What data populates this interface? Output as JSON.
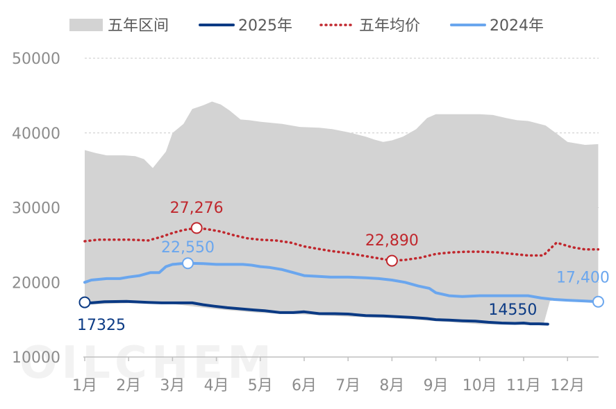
{
  "chart_data": {
    "type": "line",
    "categories": [
      "1月",
      "2月",
      "3月",
      "4月",
      "5月",
      "6月",
      "7月",
      "8月",
      "9月",
      "10月",
      "11月",
      "12月"
    ],
    "ylim": [
      10000,
      50000
    ],
    "yticks": [
      "10000",
      "20000",
      "30000",
      "40000",
      "50000"
    ],
    "grid": true,
    "legend_position": "top",
    "legend": [
      {
        "key": "range",
        "label": "五年区间"
      },
      {
        "key": "y2025",
        "label": "2025年"
      },
      {
        "key": "avg",
        "label": "五年均价"
      },
      {
        "key": "y2024",
        "label": "2024年"
      }
    ],
    "colors": {
      "range": "#d3d3d3",
      "y2025": "#0b3a84",
      "avg": "#c0272d",
      "y2024": "#6aa6ee",
      "axis_text": "#8c8c8c",
      "grid": "#c8c8c8"
    },
    "series": {
      "range_high": {
        "x": [
          1.0,
          1.25,
          1.5,
          1.9,
          2.15,
          2.35,
          2.55,
          2.85,
          3.0,
          3.25,
          3.45,
          3.7,
          3.9,
          4.1,
          4.3,
          4.55,
          4.75,
          5.0,
          5.5,
          5.9,
          6.35,
          6.65,
          7.0,
          7.4,
          7.6,
          7.8,
          8.0,
          8.25,
          8.55,
          8.8,
          9.0,
          9.5,
          10.0,
          10.3,
          10.6,
          10.85,
          11.1,
          11.5,
          11.8,
          12.0,
          12.4,
          12.7
        ],
        "values": [
          37700,
          37300,
          37000,
          37000,
          36900,
          36500,
          35300,
          37500,
          40000,
          41200,
          43200,
          43700,
          44200,
          43800,
          43000,
          41800,
          41700,
          41500,
          41200,
          40800,
          40700,
          40500,
          40100,
          39500,
          39100,
          38800,
          39000,
          39500,
          40500,
          42000,
          42500,
          42500,
          42500,
          42400,
          42000,
          41700,
          41600,
          41000,
          39700,
          38800,
          38400,
          38500
        ]
      },
      "range_low": {
        "x": [
          1.0,
          2.0,
          3.0,
          4.0,
          5.0,
          6.0,
          7.0,
          8.0,
          9.0,
          10.0,
          11.0,
          11.3,
          11.45,
          11.6,
          11.7,
          12.7
        ],
        "values": [
          17000,
          17200,
          17100,
          16400,
          15900,
          15700,
          15400,
          15200,
          14800,
          14400,
          14300,
          14300,
          14300,
          17500,
          17600,
          17300
        ]
      },
      "y2025": {
        "name": "2025年",
        "x": [
          1.0,
          1.15,
          1.45,
          1.95,
          2.45,
          2.75,
          3.0,
          3.25,
          3.45,
          3.7,
          3.95,
          4.25,
          4.55,
          4.85,
          5.1,
          5.45,
          5.75,
          6.0,
          6.35,
          6.7,
          7.0,
          7.4,
          7.8,
          8.1,
          8.45,
          8.8,
          9.0,
          9.3,
          9.6,
          9.9,
          10.2,
          10.5,
          10.8,
          11.0,
          11.15,
          11.35,
          11.55
        ],
        "values": [
          17325,
          17250,
          17400,
          17450,
          17300,
          17250,
          17250,
          17250,
          17250,
          17000,
          16800,
          16600,
          16450,
          16300,
          16200,
          15950,
          15950,
          16050,
          15800,
          15800,
          15750,
          15550,
          15500,
          15400,
          15300,
          15150,
          15000,
          14950,
          14850,
          14800,
          14650,
          14550,
          14500,
          14550,
          14450,
          14450,
          14400
        ]
      },
      "avg": {
        "name": "五年均价",
        "x": [
          1.0,
          1.3,
          1.7,
          2.05,
          2.45,
          2.75,
          3.0,
          3.25,
          3.55,
          3.8,
          4.1,
          4.4,
          4.7,
          5.0,
          5.35,
          5.7,
          6.0,
          6.3,
          6.6,
          7.0,
          7.4,
          7.8,
          8.0,
          8.3,
          8.65,
          9.0,
          9.35,
          9.7,
          10.05,
          10.4,
          10.75,
          11.1,
          11.45,
          11.75,
          12.1,
          12.4,
          12.7
        ],
        "values": [
          25500,
          25700,
          25700,
          25700,
          25600,
          26100,
          26600,
          27000,
          27276,
          27100,
          26800,
          26300,
          25900,
          25700,
          25600,
          25300,
          24800,
          24500,
          24200,
          23900,
          23500,
          23100,
          22890,
          23000,
          23300,
          23800,
          24000,
          24100,
          24100,
          24000,
          23800,
          23600,
          23600,
          25300,
          24700,
          24400,
          24400
        ]
      },
      "y2024": {
        "name": "2024年",
        "x": [
          1.0,
          1.15,
          1.5,
          1.8,
          2.0,
          2.25,
          2.5,
          2.7,
          2.85,
          3.0,
          3.2,
          3.35,
          3.7,
          4.0,
          4.3,
          4.6,
          4.8,
          5.0,
          5.2,
          5.5,
          5.75,
          6.0,
          6.3,
          6.6,
          7.0,
          7.4,
          7.7,
          8.0,
          8.3,
          8.6,
          8.85,
          9.0,
          9.3,
          9.6,
          10.0,
          10.4,
          10.8,
          11.1,
          11.4,
          11.7,
          12.0,
          12.4,
          12.7
        ],
        "values": [
          20000,
          20300,
          20500,
          20500,
          20700,
          20900,
          21300,
          21300,
          22100,
          22400,
          22500,
          22550,
          22500,
          22400,
          22400,
          22400,
          22300,
          22100,
          22000,
          21700,
          21300,
          20900,
          20800,
          20700,
          20700,
          20600,
          20500,
          20300,
          20000,
          19500,
          19200,
          18600,
          18200,
          18100,
          18200,
          18200,
          18200,
          18200,
          17900,
          17700,
          17600,
          17500,
          17400
        ]
      }
    },
    "annotations": [
      {
        "text": "27,276",
        "series": "avg",
        "x": 3.55,
        "y": 27276
      },
      {
        "text": "22,890",
        "series": "avg",
        "x": 8.0,
        "y": 22890
      },
      {
        "text": "22,550",
        "series": "y2024",
        "x": 3.35,
        "y": 22550
      },
      {
        "text": "17,400",
        "series": "y2024",
        "x": 12.7,
        "y": 17400
      },
      {
        "text": "17325",
        "series": "y2025",
        "x": 1.0,
        "y": 17325
      },
      {
        "text": "14550",
        "series": "y2025",
        "x": 10.5,
        "y": 14550
      }
    ]
  }
}
